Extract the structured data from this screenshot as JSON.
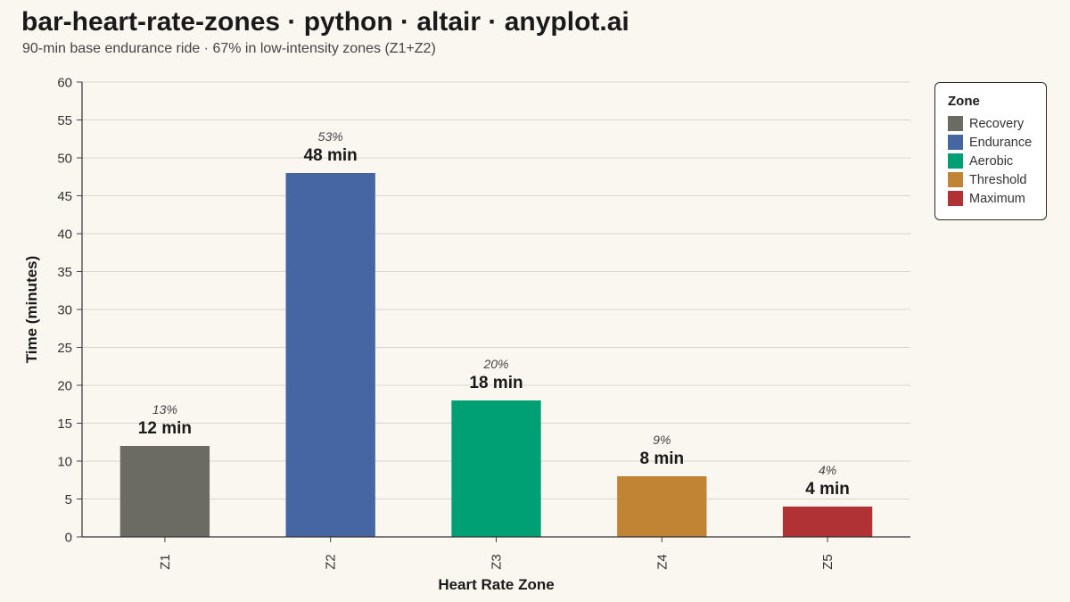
{
  "title": "bar-heart-rate-zones · python · altair · anyplot.ai",
  "subtitle": "90-min base endurance ride · 67% in low-intensity zones (Z1+Z2)",
  "chart_data": {
    "type": "bar",
    "xlabel": "Heart Rate Zone",
    "ylabel": "Time (minutes)",
    "ylim": [
      0,
      60
    ],
    "yticks": [
      0,
      5,
      10,
      15,
      20,
      25,
      30,
      35,
      40,
      45,
      50,
      55,
      60
    ],
    "grid": true,
    "legend_position": "right",
    "categories": [
      "Z1",
      "Z2",
      "Z3",
      "Z4",
      "Z5"
    ],
    "values": [
      12,
      48,
      18,
      8,
      4
    ],
    "value_labels": [
      "12 min",
      "48 min",
      "18 min",
      "8 min",
      "4 min"
    ],
    "percent_labels": [
      "13%",
      "53%",
      "20%",
      "9%",
      "4%"
    ],
    "zone_names": [
      "Recovery",
      "Endurance",
      "Aerobic",
      "Threshold",
      "Maximum"
    ],
    "colors": [
      "#6b6b63",
      "#4566a3",
      "#009f74",
      "#c08434",
      "#b03234"
    ]
  },
  "legend": {
    "title": "Zone",
    "items": [
      {
        "label": "Recovery",
        "color": "#6b6b63"
      },
      {
        "label": "Endurance",
        "color": "#4566a3"
      },
      {
        "label": "Aerobic",
        "color": "#009f74"
      },
      {
        "label": "Threshold",
        "color": "#c08434"
      },
      {
        "label": "Maximum",
        "color": "#b03234"
      }
    ]
  }
}
